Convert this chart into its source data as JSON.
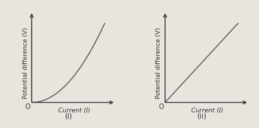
{
  "background_color": "#e8e4de",
  "graph1": {
    "xlabel": "Current (",
    "xlabel_italic": "I",
    "xlabel_end": ")",
    "ylabel": "Potential difference (V)",
    "label": "(i)",
    "x": [
      0.0,
      0.05,
      0.1,
      0.15,
      0.2,
      0.25,
      0.3,
      0.35,
      0.4,
      0.45,
      0.5,
      0.55,
      0.6,
      0.65,
      0.7,
      0.75,
      0.8,
      0.85,
      0.9,
      0.95,
      1.0
    ],
    "y": [
      0.0,
      0.0025,
      0.01,
      0.0225,
      0.04,
      0.0625,
      0.09,
      0.1225,
      0.16,
      0.2025,
      0.25,
      0.3025,
      0.36,
      0.4225,
      0.49,
      0.5625,
      0.64,
      0.7225,
      0.81,
      0.9025,
      1.0
    ]
  },
  "graph2": {
    "xlabel": "Current (",
    "xlabel_italic": "I",
    "xlabel_end": ")",
    "ylabel": "Potential difference (V)",
    "label": "(ii)",
    "x": [
      0.0,
      1.0
    ],
    "y": [
      0.0,
      1.0
    ]
  },
  "line_color": "#555555",
  "axis_color": "#333333",
  "text_color": "#333333",
  "label_fontsize": 6.5,
  "sublabel_fontsize": 7.5,
  "origin_label": "O"
}
